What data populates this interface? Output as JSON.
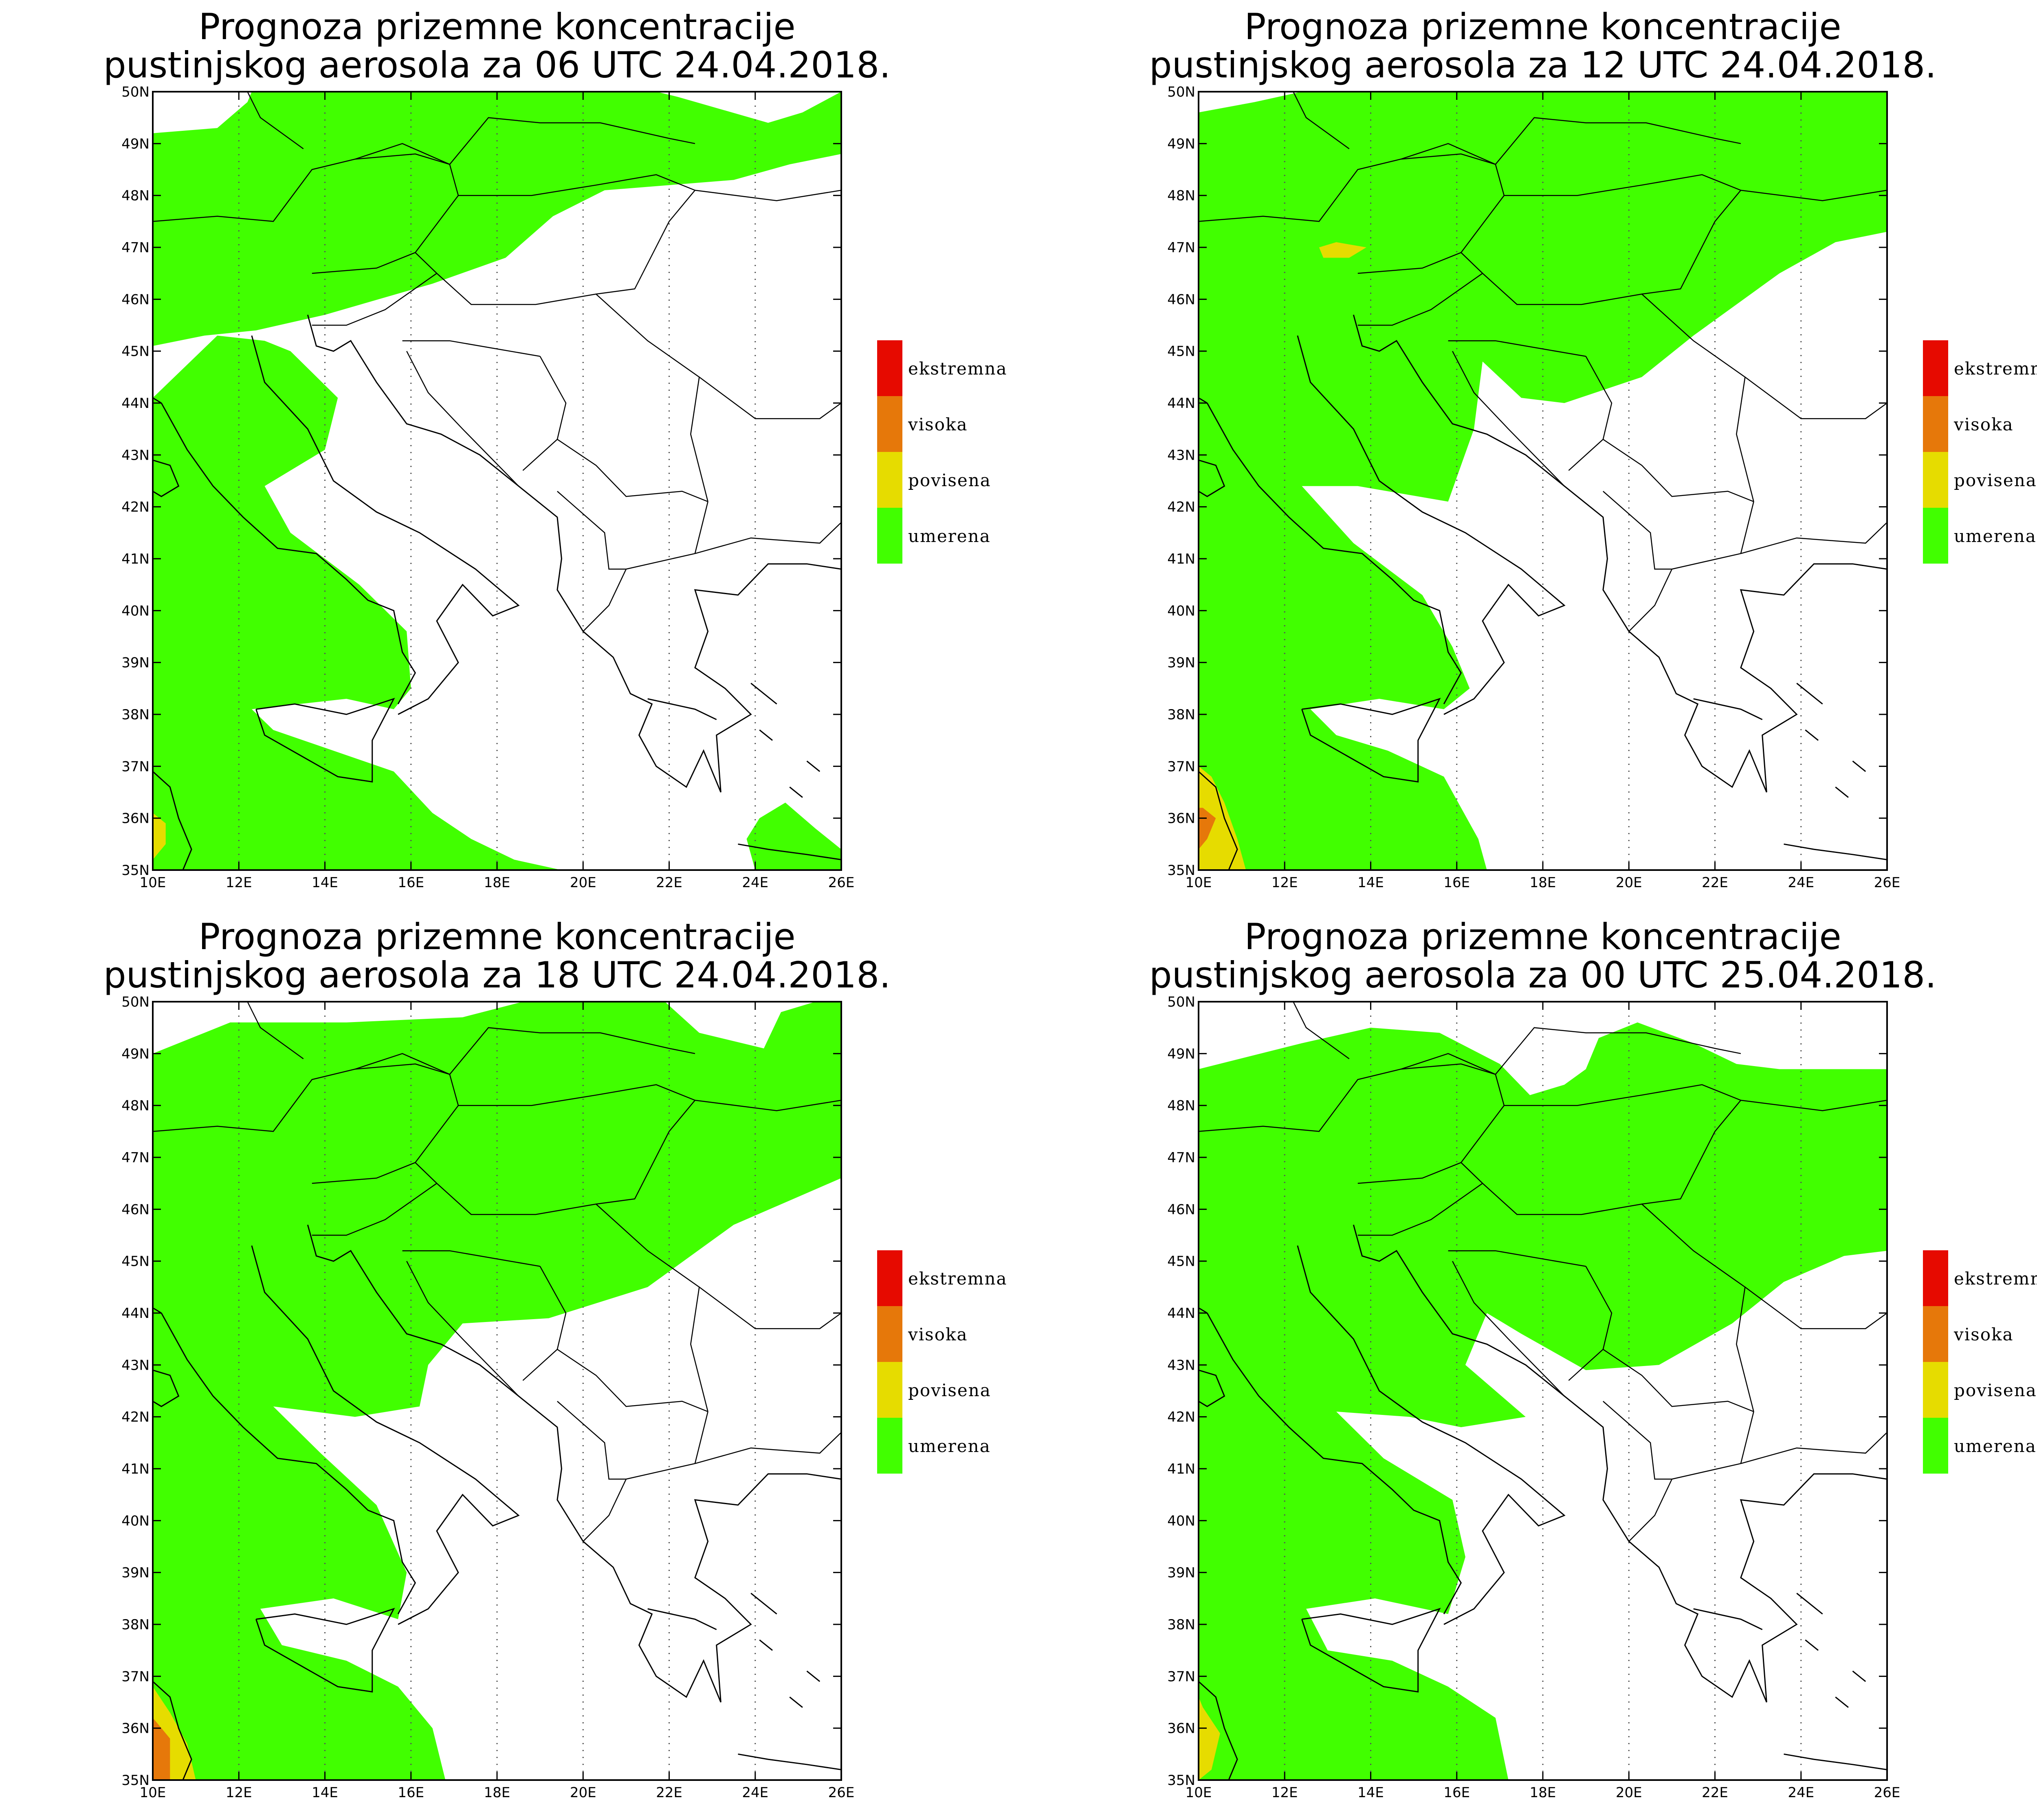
{
  "colors": {
    "umerena": "#41ff00",
    "povisena": "#e6dc00",
    "visoka": "#e6780a",
    "ekstremna": "#e60a00",
    "background": "#ffffff",
    "coast": "#000000",
    "grid": "#555555"
  },
  "legend": [
    {
      "label": "ekstremna",
      "color": "#e60a00"
    },
    {
      "label": "visoka",
      "color": "#e6780a"
    },
    {
      "label": "povisena",
      "color": "#e6dc00"
    },
    {
      "label": "umerena",
      "color": "#41ff00"
    }
  ],
  "axis": {
    "lon_ticks": [
      "10E",
      "12E",
      "14E",
      "16E",
      "18E",
      "20E",
      "22E",
      "24E",
      "26E"
    ],
    "lat_ticks": [
      "35N",
      "36N",
      "37N",
      "38N",
      "39N",
      "40N",
      "41N",
      "42N",
      "43N",
      "44N",
      "45N",
      "46N",
      "47N",
      "48N",
      "49N",
      "50N"
    ],
    "lon_range": [
      10,
      26
    ],
    "lat_range": [
      35,
      50
    ]
  },
  "panels": [
    {
      "title_line1": "Prognoza prizemne koncentracije",
      "title_line2": "pustinjskog aerosola za 06 UTC 24.04.2018.",
      "regions": [
        {
          "level": "umerena",
          "lonlat": [
            [
              10,
              49.2
            ],
            [
              11.5,
              49.3
            ],
            [
              12.2,
              49.8
            ],
            [
              12.3,
              50
            ],
            [
              21.7,
              50
            ],
            [
              22.2,
              49.9
            ],
            [
              24.3,
              49.4
            ],
            [
              25.1,
              49.6
            ],
            [
              26,
              50
            ],
            [
              26,
              48.8
            ],
            [
              24.8,
              48.6
            ],
            [
              23.5,
              48.3
            ],
            [
              22,
              48.2
            ],
            [
              20.5,
              48.1
            ],
            [
              19.3,
              47.6
            ],
            [
              18.2,
              46.8
            ],
            [
              16.5,
              46.3
            ],
            [
              14,
              45.7
            ],
            [
              12.4,
              45.4
            ],
            [
              11.2,
              45.3
            ],
            [
              10,
              45.1
            ]
          ]
        },
        {
          "level": "umerena",
          "lonlat": [
            [
              10,
              44.1
            ],
            [
              11.5,
              45.3
            ],
            [
              12.6,
              45.2
            ],
            [
              13.2,
              45.0
            ],
            [
              14.3,
              44.1
            ],
            [
              14.0,
              43.1
            ],
            [
              12.6,
              42.4
            ],
            [
              13.2,
              41.5
            ],
            [
              14.8,
              40.5
            ],
            [
              15.9,
              39.6
            ],
            [
              16.0,
              38.5
            ],
            [
              15.6,
              38.1
            ],
            [
              14.5,
              38.3
            ],
            [
              12.3,
              38.1
            ],
            [
              12.8,
              37.7
            ],
            [
              14.2,
              37.3
            ],
            [
              15.6,
              36.9
            ],
            [
              16.5,
              36.1
            ],
            [
              17.4,
              35.6
            ],
            [
              18.4,
              35.2
            ],
            [
              19.5,
              35
            ],
            [
              10,
              35
            ],
            [
              10,
              42.9
            ],
            [
              10.8,
              42.6
            ],
            [
              11.0,
              42.4
            ],
            [
              10.4,
              42.2
            ],
            [
              10,
              42.3
            ]
          ]
        },
        {
          "level": "umerena",
          "lonlat": [
            [
              24.0,
              35
            ],
            [
              26,
              35
            ],
            [
              26,
              35.4
            ],
            [
              25.4,
              35.8
            ],
            [
              24.7,
              36.3
            ],
            [
              24.1,
              36.0
            ],
            [
              23.8,
              35.6
            ]
          ]
        },
        {
          "level": "povisena",
          "lonlat": [
            [
              10,
              35.2
            ],
            [
              10.3,
              35.5
            ],
            [
              10.3,
              35.9
            ],
            [
              10,
              36.1
            ]
          ]
        }
      ]
    },
    {
      "title_line1": "Prognoza prizemne koncentracije",
      "title_line2": "pustinjskog aerosola za 12 UTC 24.04.2018.",
      "regions": [
        {
          "level": "umerena",
          "lonlat": [
            [
              10,
              49.6
            ],
            [
              11.3,
              49.8
            ],
            [
              12.4,
              50
            ],
            [
              26,
              50
            ],
            [
              26,
              47.3
            ],
            [
              24.8,
              47.1
            ],
            [
              23.5,
              46.5
            ],
            [
              21.5,
              45.3
            ],
            [
              20.3,
              44.5
            ],
            [
              18.5,
              44.0
            ],
            [
              17.5,
              44.1
            ],
            [
              16.6,
              44.8
            ],
            [
              16.4,
              43.5
            ],
            [
              15.8,
              42.1
            ],
            [
              13.7,
              42.4
            ],
            [
              12.4,
              42.4
            ],
            [
              13.6,
              41.3
            ],
            [
              15.2,
              40.3
            ],
            [
              15.9,
              39.3
            ],
            [
              16.3,
              38.5
            ],
            [
              15.7,
              38.1
            ],
            [
              14.2,
              38.3
            ],
            [
              12.6,
              38.1
            ],
            [
              13.2,
              37.6
            ],
            [
              14.4,
              37.3
            ],
            [
              15.7,
              36.8
            ],
            [
              16.5,
              35.6
            ],
            [
              16.7,
              35
            ],
            [
              10,
              35
            ]
          ]
        },
        {
          "level": "povisena",
          "lonlat": [
            [
              10,
              35
            ],
            [
              11.1,
              35
            ],
            [
              10.9,
              35.6
            ],
            [
              10.6,
              36.3
            ],
            [
              10.3,
              36.8
            ],
            [
              10,
              37.0
            ]
          ]
        },
        {
          "level": "visoka",
          "lonlat": [
            [
              10,
              35.4
            ],
            [
              10.2,
              35.6
            ],
            [
              10.4,
              36.0
            ],
            [
              10.1,
              36.2
            ],
            [
              10,
              36.2
            ]
          ]
        },
        {
          "level": "povisena",
          "lonlat": [
            [
              12.8,
              47.0
            ],
            [
              13.2,
              47.1
            ],
            [
              13.9,
              47.0
            ],
            [
              13.5,
              46.8
            ],
            [
              12.9,
              46.8
            ]
          ]
        }
      ]
    },
    {
      "title_line1": "Prognoza prizemne koncentracije",
      "title_line2": "pustinjskog aerosola za 18 UTC 24.04.2018.",
      "regions": [
        {
          "level": "umerena",
          "lonlat": [
            [
              10,
              49.0
            ],
            [
              11.8,
              49.6
            ],
            [
              14.5,
              49.6
            ],
            [
              17.2,
              49.7
            ],
            [
              18.6,
              50
            ],
            [
              21.9,
              50
            ],
            [
              22.7,
              49.4
            ],
            [
              24.2,
              49.1
            ],
            [
              24.6,
              49.8
            ],
            [
              25.4,
              50
            ],
            [
              26,
              50
            ],
            [
              26,
              46.6
            ],
            [
              23.5,
              45.7
            ],
            [
              21.5,
              44.5
            ],
            [
              19.2,
              43.9
            ],
            [
              17.2,
              43.8
            ],
            [
              16.4,
              43.0
            ],
            [
              16.2,
              42.2
            ],
            [
              14.7,
              42.0
            ],
            [
              12.8,
              42.2
            ],
            [
              13.9,
              41.3
            ],
            [
              15.2,
              40.3
            ],
            [
              15.9,
              39.0
            ],
            [
              15.7,
              38.1
            ],
            [
              14.2,
              38.5
            ],
            [
              12.5,
              38.3
            ],
            [
              13.0,
              37.6
            ],
            [
              14.5,
              37.3
            ],
            [
              15.7,
              36.8
            ],
            [
              16.5,
              36.0
            ],
            [
              16.8,
              35
            ],
            [
              10,
              35
            ]
          ]
        },
        {
          "level": "povisena",
          "lonlat": [
            [
              10,
              35
            ],
            [
              11.0,
              35
            ],
            [
              10.8,
              35.7
            ],
            [
              10.4,
              36.3
            ],
            [
              10,
              36.8
            ]
          ]
        },
        {
          "level": "visoka",
          "lonlat": [
            [
              10,
              35
            ],
            [
              10.4,
              35
            ],
            [
              10.4,
              35.8
            ],
            [
              10,
              36.2
            ]
          ]
        }
      ]
    },
    {
      "title_line1": "Prognoza prizemne koncentracije",
      "title_line2": "pustinjskog aerosola za 00 UTC 25.04.2018.",
      "regions": [
        {
          "level": "umerena",
          "lonlat": [
            [
              10,
              48.7
            ],
            [
              12.4,
              49.2
            ],
            [
              14.0,
              49.5
            ],
            [
              15.6,
              49.4
            ],
            [
              17.0,
              48.8
            ],
            [
              17.7,
              48.2
            ],
            [
              18.5,
              48.4
            ],
            [
              19.0,
              48.7
            ],
            [
              19.3,
              49.3
            ],
            [
              20.2,
              49.6
            ],
            [
              21.5,
              49.2
            ],
            [
              22.5,
              48.8
            ],
            [
              23.5,
              48.7
            ],
            [
              26,
              48.7
            ],
            [
              26,
              45.2
            ],
            [
              25.0,
              45.1
            ],
            [
              23.6,
              44.6
            ],
            [
              22.4,
              43.8
            ],
            [
              20.7,
              43.0
            ],
            [
              19.0,
              42.9
            ],
            [
              17.5,
              43.6
            ],
            [
              16.7,
              44.0
            ],
            [
              16.2,
              43.0
            ],
            [
              17.6,
              42.0
            ],
            [
              16.1,
              41.8
            ],
            [
              14.9,
              42.0
            ],
            [
              13.2,
              42.1
            ],
            [
              14.3,
              41.2
            ],
            [
              15.9,
              40.4
            ],
            [
              16.2,
              39.3
            ],
            [
              15.8,
              38.2
            ],
            [
              14.1,
              38.5
            ],
            [
              12.5,
              38.3
            ],
            [
              13.0,
              37.5
            ],
            [
              14.5,
              37.3
            ],
            [
              15.8,
              36.8
            ],
            [
              16.9,
              36.2
            ],
            [
              17.2,
              35
            ],
            [
              10,
              35
            ]
          ]
        },
        {
          "level": "povisena",
          "lonlat": [
            [
              10,
              35
            ],
            [
              10.3,
              35.2
            ],
            [
              10.5,
              35.9
            ],
            [
              10.1,
              36.4
            ],
            [
              10,
              36.6
            ]
          ]
        }
      ]
    }
  ]
}
